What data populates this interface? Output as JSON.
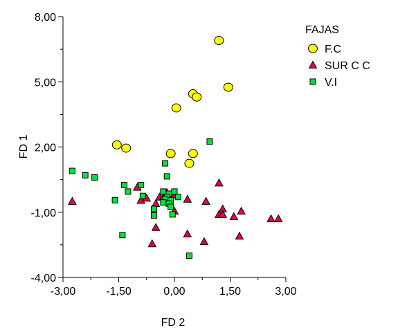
{
  "chart_data": {
    "type": "scatter",
    "xlabel": "FD 2",
    "ylabel": "FD 1",
    "xlim": [
      -3.0,
      3.0
    ],
    "ylim": [
      -4.0,
      8.0
    ],
    "x_ticks": [
      -3.0,
      -1.5,
      0.0,
      1.5,
      3.0
    ],
    "y_ticks": [
      -4.0,
      -1.0,
      2.0,
      5.0,
      8.0
    ],
    "x_tick_labels": [
      "-3,00",
      "-1,50",
      "0,00",
      "1,50",
      "3,00"
    ],
    "y_tick_labels": [
      "-4,00",
      "-1,00",
      "2,00",
      "5,00",
      "8,00"
    ],
    "grid": false,
    "legend": {
      "title": "FAJAS",
      "position": "top-right"
    },
    "series": [
      {
        "name": "F.C",
        "marker": "circle",
        "color": "#ffff00",
        "points": [
          {
            "x": 1.2,
            "y": 6.9
          },
          {
            "x": 1.45,
            "y": 4.75
          },
          {
            "x": 0.5,
            "y": 4.45
          },
          {
            "x": 0.6,
            "y": 4.3
          },
          {
            "x": 0.05,
            "y": 3.8
          },
          {
            "x": -1.55,
            "y": 2.1
          },
          {
            "x": -1.3,
            "y": 1.95
          },
          {
            "x": -0.1,
            "y": 1.7
          },
          {
            "x": 0.5,
            "y": 1.7
          },
          {
            "x": 0.4,
            "y": 1.25
          }
        ]
      },
      {
        "name": "SUR C C",
        "marker": "triangle",
        "color": "#e8003c",
        "points": [
          {
            "x": -2.75,
            "y": -0.5
          },
          {
            "x": -1.0,
            "y": 0.15
          },
          {
            "x": -0.9,
            "y": -0.45
          },
          {
            "x": -0.75,
            "y": -0.35
          },
          {
            "x": -0.5,
            "y": -0.6
          },
          {
            "x": -0.4,
            "y": -0.3
          },
          {
            "x": -0.3,
            "y": -0.3
          },
          {
            "x": -0.2,
            "y": -0.1
          },
          {
            "x": -0.1,
            "y": -0.2
          },
          {
            "x": 0.0,
            "y": -0.2
          },
          {
            "x": 0.0,
            "y": -0.95
          },
          {
            "x": 0.35,
            "y": -0.4
          },
          {
            "x": 0.85,
            "y": -0.5
          },
          {
            "x": 1.2,
            "y": 0.35
          },
          {
            "x": 1.3,
            "y": -0.85
          },
          {
            "x": 1.2,
            "y": -1.1
          },
          {
            "x": 1.3,
            "y": -1.1
          },
          {
            "x": 1.6,
            "y": -1.2
          },
          {
            "x": 1.8,
            "y": -0.95
          },
          {
            "x": -0.5,
            "y": -1.7
          },
          {
            "x": 0.35,
            "y": -2.0
          },
          {
            "x": 0.8,
            "y": -2.35
          },
          {
            "x": 1.75,
            "y": -2.1
          },
          {
            "x": -0.6,
            "y": -2.45
          },
          {
            "x": 2.6,
            "y": -1.3
          },
          {
            "x": 2.8,
            "y": -1.3
          }
        ]
      },
      {
        "name": "V.I",
        "marker": "square",
        "color": "#00e040",
        "points": [
          {
            "x": 0.95,
            "y": 2.25
          },
          {
            "x": -0.25,
            "y": 1.25
          },
          {
            "x": -0.2,
            "y": 0.65
          },
          {
            "x": -2.75,
            "y": 0.9
          },
          {
            "x": -2.4,
            "y": 0.7
          },
          {
            "x": -2.15,
            "y": 0.6
          },
          {
            "x": -1.35,
            "y": 0.25
          },
          {
            "x": -0.9,
            "y": 0.25
          },
          {
            "x": -1.25,
            "y": -0.05
          },
          {
            "x": -0.85,
            "y": -0.25
          },
          {
            "x": -0.3,
            "y": -0.05
          },
          {
            "x": -0.15,
            "y": -0.15
          },
          {
            "x": 0.0,
            "y": -0.05
          },
          {
            "x": 0.1,
            "y": -0.3
          },
          {
            "x": -0.2,
            "y": -0.3
          },
          {
            "x": -0.1,
            "y": -0.45
          },
          {
            "x": -0.25,
            "y": -0.4
          },
          {
            "x": -0.15,
            "y": -0.6
          },
          {
            "x": -0.1,
            "y": -0.75
          },
          {
            "x": -0.3,
            "y": -0.55
          },
          {
            "x": -0.55,
            "y": -0.85
          },
          {
            "x": -0.05,
            "y": -1.1
          },
          {
            "x": -0.55,
            "y": -1.15
          },
          {
            "x": -1.6,
            "y": -0.45
          },
          {
            "x": -1.4,
            "y": -2.05
          },
          {
            "x": 0.4,
            "y": -3.0
          }
        ]
      }
    ]
  }
}
